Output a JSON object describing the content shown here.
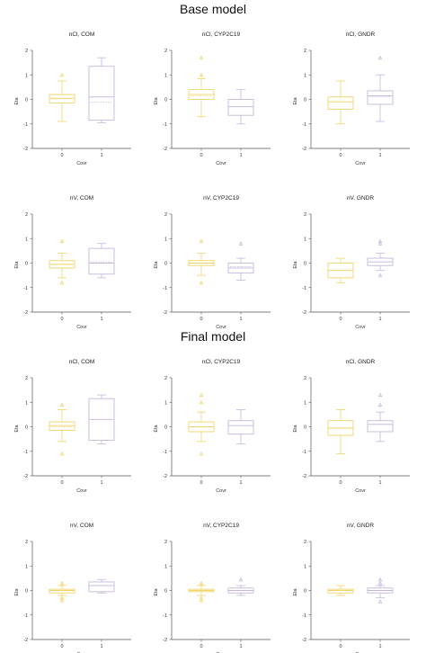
{
  "sections": [
    {
      "title": "Base model"
    },
    {
      "title": "Final model"
    }
  ],
  "colors": {
    "cov0": "#f0d46a",
    "cov1": "#c6b7da",
    "axis": "#555555"
  },
  "chart_data": [
    {
      "type": "box",
      "section": "Base model",
      "title": "nCl, COM",
      "xlabel": "Covr",
      "ylabel": "Eta",
      "ylim": [
        -2,
        2
      ],
      "categories": [
        "0",
        "1"
      ],
      "boxes": [
        {
          "whislo": -0.9,
          "q1": -0.15,
          "med": 0.05,
          "mean": 0.02,
          "q3": 0.2,
          "whishi": 0.75,
          "fliers": [
            1.0
          ]
        },
        {
          "whislo": -0.95,
          "q1": -0.85,
          "med": 0.1,
          "mean": -0.12,
          "q3": 1.35,
          "whishi": 1.7,
          "fliers": []
        }
      ]
    },
    {
      "type": "box",
      "section": "Base model",
      "title": "nCl, CYP2C19",
      "xlabel": "Covr",
      "ylabel": "Eta",
      "ylim": [
        -2,
        2
      ],
      "categories": [
        "0",
        "1"
      ],
      "boxes": [
        {
          "whislo": -0.7,
          "q1": 0.0,
          "med": 0.2,
          "mean": 0.15,
          "q3": 0.4,
          "whishi": 0.85,
          "fliers": [
            1.0,
            1.7
          ]
        },
        {
          "whislo": -1.0,
          "q1": -0.65,
          "med": -0.3,
          "mean": -0.3,
          "q3": 0.0,
          "whishi": 0.4,
          "fliers": []
        }
      ]
    },
    {
      "type": "box",
      "section": "Base model",
      "title": "nCl, GNDR",
      "xlabel": "Covr",
      "ylabel": "Eta",
      "ylim": [
        -2,
        2
      ],
      "categories": [
        "0",
        "1"
      ],
      "boxes": [
        {
          "whislo": -1.0,
          "q1": -0.4,
          "med": -0.1,
          "mean": -0.1,
          "q3": 0.1,
          "whishi": 0.75,
          "fliers": []
        },
        {
          "whislo": -0.9,
          "q1": -0.2,
          "med": 0.15,
          "mean": 0.1,
          "q3": 0.35,
          "whishi": 1.0,
          "fliers": [
            1.7
          ]
        }
      ]
    },
    {
      "type": "box",
      "section": "Base model",
      "title": "nV, COM",
      "xlabel": "Covr",
      "ylabel": "Eta",
      "ylim": [
        -2,
        2
      ],
      "categories": [
        "0",
        "1"
      ],
      "boxes": [
        {
          "whislo": -0.6,
          "q1": -0.2,
          "med": -0.05,
          "mean": -0.05,
          "q3": 0.1,
          "whishi": 0.4,
          "fliers": [
            0.9,
            -0.8
          ]
        },
        {
          "whislo": -0.6,
          "q1": -0.45,
          "med": 0.0,
          "mean": 0.05,
          "q3": 0.6,
          "whishi": 0.8,
          "fliers": []
        }
      ]
    },
    {
      "type": "box",
      "section": "Base model",
      "title": "nV, CYP2C19",
      "xlabel": "Covr",
      "ylabel": "Eta",
      "ylim": [
        -2,
        2
      ],
      "categories": [
        "0",
        "1"
      ],
      "boxes": [
        {
          "whislo": -0.5,
          "q1": -0.1,
          "med": 0.0,
          "mean": 0.0,
          "q3": 0.1,
          "whishi": 0.4,
          "fliers": [
            0.9,
            -0.8
          ]
        },
        {
          "whislo": -0.7,
          "q1": -0.4,
          "med": -0.2,
          "mean": -0.15,
          "q3": 0.0,
          "whishi": 0.2,
          "fliers": [
            0.8
          ]
        }
      ]
    },
    {
      "type": "box",
      "section": "Base model",
      "title": "nV, GNDR",
      "xlabel": "Covr",
      "ylabel": "Eta",
      "ylim": [
        -2,
        2
      ],
      "categories": [
        "0",
        "1"
      ],
      "boxes": [
        {
          "whislo": -0.8,
          "q1": -0.6,
          "med": -0.3,
          "mean": -0.3,
          "q3": 0.0,
          "whishi": 0.2,
          "fliers": []
        },
        {
          "whislo": -0.3,
          "q1": -0.1,
          "med": 0.05,
          "mean": 0.05,
          "q3": 0.2,
          "whishi": 0.4,
          "fliers": [
            0.9,
            0.8,
            -0.5
          ]
        }
      ]
    },
    {
      "type": "box",
      "section": "Final model",
      "title": "nCl, COM",
      "xlabel": "Covr",
      "ylabel": "Eta",
      "ylim": [
        -2,
        2
      ],
      "categories": [
        "0",
        "1"
      ],
      "boxes": [
        {
          "whislo": -0.6,
          "q1": -0.15,
          "med": 0.05,
          "mean": 0.0,
          "q3": 0.2,
          "whishi": 0.7,
          "fliers": [
            0.9,
            -1.1
          ]
        },
        {
          "whislo": -0.7,
          "q1": -0.55,
          "med": 0.3,
          "mean": 0.3,
          "q3": 1.15,
          "whishi": 1.3,
          "fliers": []
        }
      ]
    },
    {
      "type": "box",
      "section": "Final model",
      "title": "nCl, CYP2C19",
      "xlabel": "Covr",
      "ylabel": "Eta",
      "ylim": [
        -2,
        2
      ],
      "categories": [
        "0",
        "1"
      ],
      "boxes": [
        {
          "whislo": -0.6,
          "q1": -0.2,
          "med": 0.0,
          "mean": 0.0,
          "q3": 0.2,
          "whishi": 0.6,
          "fliers": [
            1.0,
            1.3,
            -1.1
          ]
        },
        {
          "whislo": -0.7,
          "q1": -0.3,
          "med": 0.05,
          "mean": 0.05,
          "q3": 0.25,
          "whishi": 0.7,
          "fliers": []
        }
      ]
    },
    {
      "type": "box",
      "section": "Final model",
      "title": "nCl, GNDR",
      "xlabel": "Covr",
      "ylabel": "Eta",
      "ylim": [
        -2,
        2
      ],
      "categories": [
        "0",
        "1"
      ],
      "boxes": [
        {
          "whislo": -1.1,
          "q1": -0.35,
          "med": -0.05,
          "mean": -0.05,
          "q3": 0.25,
          "whishi": 0.7,
          "fliers": []
        },
        {
          "whislo": -0.6,
          "q1": -0.2,
          "med": 0.1,
          "mean": 0.1,
          "q3": 0.25,
          "whishi": 0.6,
          "fliers": [
            0.9,
            1.3
          ]
        }
      ]
    },
    {
      "type": "box",
      "section": "Final model",
      "title": "nV, COM",
      "xlabel": "Covr",
      "ylabel": "Eta",
      "ylim": [
        -2,
        2
      ],
      "categories": [
        "0",
        "1"
      ],
      "boxes": [
        {
          "whislo": -0.2,
          "q1": -0.1,
          "med": 0.0,
          "mean": 0.0,
          "q3": 0.05,
          "whishi": 0.2,
          "fliers": [
            0.3,
            -0.3,
            -0.4
          ]
        },
        {
          "whislo": -0.1,
          "q1": -0.05,
          "med": 0.2,
          "mean": 0.2,
          "q3": 0.35,
          "whishi": 0.45,
          "fliers": []
        }
      ]
    },
    {
      "type": "box",
      "section": "Final model",
      "title": "nV, CYP2C19",
      "xlabel": "Covr",
      "ylabel": "Eta",
      "ylim": [
        -2,
        2
      ],
      "categories": [
        "0",
        "1"
      ],
      "boxes": [
        {
          "whislo": -0.2,
          "q1": -0.05,
          "med": 0.0,
          "mean": 0.0,
          "q3": 0.05,
          "whishi": 0.2,
          "fliers": [
            0.3,
            -0.3,
            -0.4
          ]
        },
        {
          "whislo": -0.2,
          "q1": -0.1,
          "med": 0.0,
          "mean": 0.0,
          "q3": 0.1,
          "whishi": 0.2,
          "fliers": [
            0.45
          ]
        }
      ]
    },
    {
      "type": "box",
      "section": "Final model",
      "title": "nV, GNDR",
      "xlabel": "Covr",
      "ylabel": "Eta",
      "ylim": [
        -2,
        2
      ],
      "categories": [
        "0",
        "1"
      ],
      "boxes": [
        {
          "whislo": -0.2,
          "q1": -0.1,
          "med": 0.0,
          "mean": 0.0,
          "q3": 0.05,
          "whishi": 0.2,
          "fliers": []
        },
        {
          "whislo": -0.3,
          "q1": -0.1,
          "med": 0.0,
          "mean": 0.0,
          "q3": 0.1,
          "whishi": 0.2,
          "fliers": [
            0.45,
            0.3,
            -0.45
          ]
        }
      ]
    }
  ]
}
